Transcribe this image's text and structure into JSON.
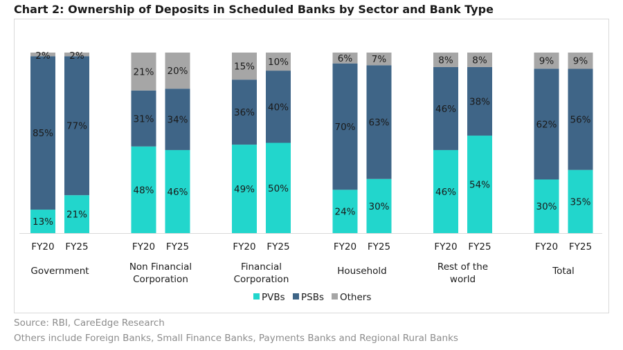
{
  "title": "Chart 2: Ownership of Deposits in Scheduled Banks by Sector and Bank Type",
  "source": "Source: RBI, CareEdge Research",
  "note": "Others include Foreign Banks, Small Finance Banks, Payments Banks and Regional Rural Banks",
  "colors": {
    "PVBs": "#22d6cc",
    "PSBs": "#3f6587",
    "Others": "#a6a6a6"
  },
  "chart_data": {
    "type": "bar",
    "stacked": true,
    "legend": {
      "placement": "bottom"
    },
    "ylim": [
      0,
      100
    ],
    "grid": false,
    "groups": [
      {
        "label": [
          "Government"
        ],
        "bars": [
          {
            "label": "FY20",
            "PVBs": 13,
            "PSBs": 85,
            "Others": 2
          },
          {
            "label": "FY25",
            "PVBs": 21,
            "PSBs": 77,
            "Others": 2
          }
        ]
      },
      {
        "label": [
          "Non Financial",
          "Corporation"
        ],
        "bars": [
          {
            "label": "FY20",
            "PVBs": 48,
            "PSBs": 31,
            "Others": 21
          },
          {
            "label": "FY25",
            "PVBs": 46,
            "PSBs": 34,
            "Others": 20
          }
        ]
      },
      {
        "label": [
          "Financial",
          "Corporation"
        ],
        "bars": [
          {
            "label": "FY20",
            "PVBs": 49,
            "PSBs": 36,
            "Others": 15
          },
          {
            "label": "FY25",
            "PVBs": 50,
            "PSBs": 40,
            "Others": 10
          }
        ]
      },
      {
        "label": [
          "Household"
        ],
        "bars": [
          {
            "label": "FY20",
            "PVBs": 24,
            "PSBs": 70,
            "Others": 6
          },
          {
            "label": "FY25",
            "PVBs": 30,
            "PSBs": 63,
            "Others": 7
          }
        ]
      },
      {
        "label": [
          "Rest of the",
          "world"
        ],
        "bars": [
          {
            "label": "FY20",
            "PVBs": 46,
            "PSBs": 46,
            "Others": 8
          },
          {
            "label": "FY25",
            "PVBs": 54,
            "PSBs": 38,
            "Others": 8
          }
        ]
      },
      {
        "label": [
          "Total"
        ],
        "bars": [
          {
            "label": "FY20",
            "PVBs": 30,
            "PSBs": 62,
            "Others": 9
          },
          {
            "label": "FY25",
            "PVBs": 35,
            "PSBs": 56,
            "Others": 9
          }
        ]
      }
    ],
    "series": [
      "PVBs",
      "PSBs",
      "Others"
    ]
  }
}
